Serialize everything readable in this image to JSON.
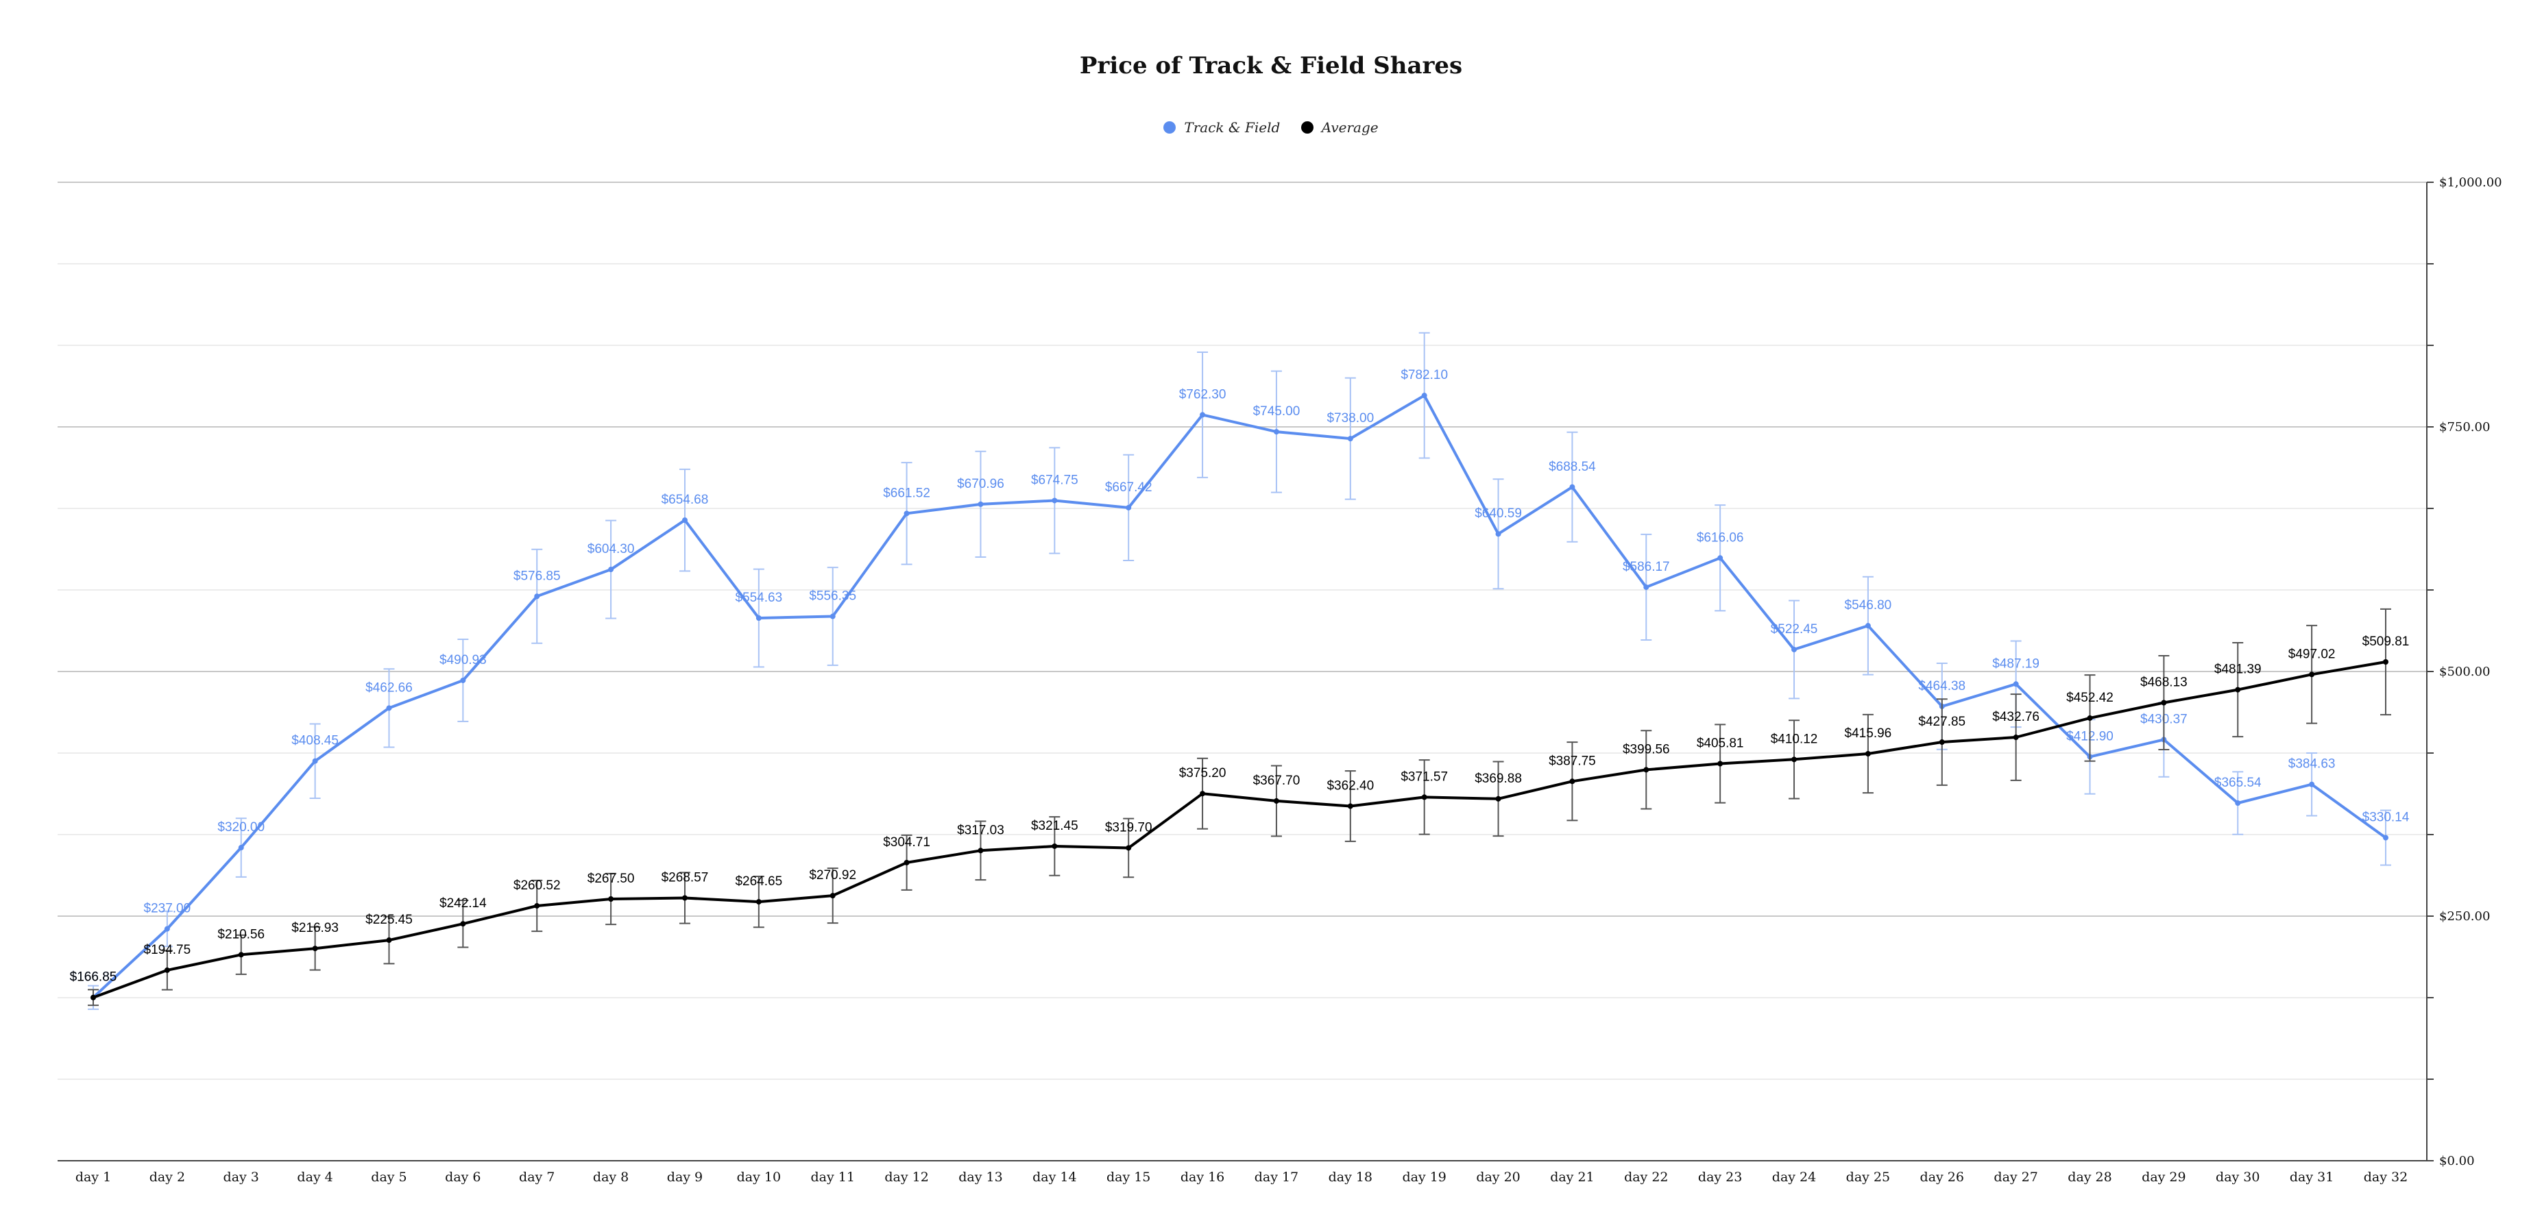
{
  "chart_data": {
    "type": "line",
    "title": "Price of Track & Field Shares",
    "xlabel": "",
    "ylabel": "",
    "ylim": [
      0,
      1000
    ],
    "y_ticks": [
      "$0.00",
      "$250.00",
      "$500.00",
      "$750.00",
      "$1,000.00"
    ],
    "y_tick_values": [
      0,
      250,
      500,
      750,
      1000
    ],
    "y_axis_position": "right",
    "grid": true,
    "legend": "top-center",
    "categories": [
      "day 1",
      "day 2",
      "day 3",
      "day 4",
      "day 5",
      "day 6",
      "day 7",
      "day 8",
      "day 9",
      "day 10",
      "day 11",
      "day 12",
      "day 13",
      "day 14",
      "day 15",
      "day 16",
      "day 17",
      "day 18",
      "day 19",
      "day 20",
      "day 21",
      "day 22",
      "day 23",
      "day 24",
      "day 25",
      "day 26",
      "day 27",
      "day 28",
      "day 29",
      "day 30",
      "day 31",
      "day 32"
    ],
    "series": [
      {
        "name": "Track & Field",
        "color": "#5b8def",
        "values": [
          166.85,
          237.0,
          320.0,
          408.45,
          462.66,
          490.93,
          576.85,
          604.3,
          654.68,
          554.63,
          556.35,
          661.52,
          670.96,
          674.75,
          667.42,
          762.3,
          745.0,
          738.0,
          782.1,
          640.59,
          688.54,
          586.17,
          616.06,
          522.45,
          546.8,
          464.38,
          487.19,
          412.9,
          430.37,
          365.54,
          384.63,
          330.14
        ],
        "labels": [
          "$166.85",
          "$237.00",
          "$320.00",
          "$408.45",
          "$462.66",
          "$490.93",
          "$576.85",
          "$604.30",
          "$654.68",
          "$554.63",
          "$556.35",
          "$661.52",
          "$670.96",
          "$674.75",
          "$667.42",
          "$762.30",
          "$745.00",
          "$738.00",
          "$782.10",
          "$640.59",
          "$688.54",
          "$586.17",
          "$616.06",
          "$522.45",
          "$546.80",
          "$464.38",
          "$487.19",
          "$412.90",
          "$430.37",
          "$365.54",
          "$384.63",
          "$330.14"
        ],
        "error": [
          12,
          18,
          30,
          38,
          40,
          42,
          48,
          50,
          52,
          50,
          50,
          52,
          54,
          54,
          54,
          64,
          62,
          62,
          64,
          56,
          56,
          54,
          54,
          50,
          50,
          44,
          44,
          38,
          38,
          32,
          32,
          28
        ]
      },
      {
        "name": "Average",
        "color": "#000000",
        "values": [
          166.85,
          194.75,
          210.56,
          216.93,
          225.45,
          242.14,
          260.52,
          267.5,
          268.57,
          264.65,
          270.92,
          304.71,
          317.03,
          321.45,
          319.7,
          375.2,
          367.7,
          362.4,
          371.57,
          369.88,
          387.75,
          399.56,
          405.81,
          410.12,
          415.96,
          427.85,
          432.76,
          452.42,
          468.13,
          481.39,
          497.02,
          509.81
        ],
        "labels": [
          "$166.85",
          "$194.75",
          "$210.56",
          "$216.93",
          "$225.45",
          "$242.14",
          "$260.52",
          "$267.50",
          "$268.57",
          "$264.65",
          "$270.92",
          "$304.71",
          "$317.03",
          "$321.45",
          "$319.70",
          "$375.20",
          "$367.70",
          "$362.40",
          "$371.57",
          "$369.88",
          "$387.75",
          "$399.56",
          "$405.81",
          "$410.12",
          "$415.96",
          "$427.85",
          "$432.76",
          "$452.42",
          "$468.13",
          "$481.39",
          "$497.02",
          "$509.81"
        ],
        "error": [
          8,
          20,
          20,
          22,
          24,
          24,
          26,
          26,
          26,
          26,
          28,
          28,
          30,
          30,
          30,
          36,
          36,
          36,
          38,
          38,
          40,
          40,
          40,
          40,
          40,
          44,
          44,
          44,
          48,
          48,
          50,
          54
        ]
      }
    ]
  }
}
